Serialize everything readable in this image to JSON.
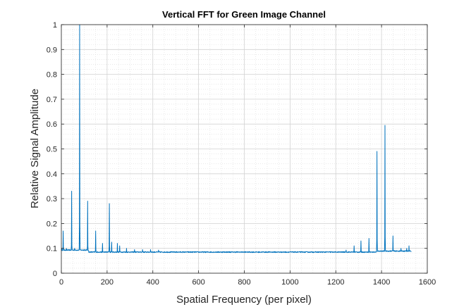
{
  "chart_data": {
    "type": "line",
    "title": "Vertical FFT for Green Image Channel",
    "xlabel": "Spatial Frequency (per pixel)",
    "ylabel": "Relative Signal Amplitude",
    "xlim": [
      0,
      1600
    ],
    "ylim": [
      0,
      1
    ],
    "xticks": [
      "0",
      "200",
      "400",
      "600",
      "800",
      "1000",
      "1200",
      "1400",
      "1600"
    ],
    "yticks": [
      "0",
      "0.1",
      "0.2",
      "0.3",
      "0.4",
      "0.5",
      "0.6",
      "0.7",
      "0.8",
      "0.9",
      "1"
    ],
    "grid": true,
    "minor_grid": true,
    "line_color": "#0072BD",
    "baseline": 0.085,
    "x_end": 1530,
    "peaks": [
      {
        "x": 2,
        "y": 0.1
      },
      {
        "x": 8,
        "y": 0.17
      },
      {
        "x": 14,
        "y": 0.095
      },
      {
        "x": 22,
        "y": 0.1
      },
      {
        "x": 45,
        "y": 0.33
      },
      {
        "x": 58,
        "y": 0.1
      },
      {
        "x": 80,
        "y": 1.0
      },
      {
        "x": 100,
        "y": 0.095
      },
      {
        "x": 115,
        "y": 0.29
      },
      {
        "x": 150,
        "y": 0.17
      },
      {
        "x": 180,
        "y": 0.12
      },
      {
        "x": 210,
        "y": 0.28
      },
      {
        "x": 220,
        "y": 0.125
      },
      {
        "x": 245,
        "y": 0.12
      },
      {
        "x": 255,
        "y": 0.11
      },
      {
        "x": 285,
        "y": 0.1
      },
      {
        "x": 320,
        "y": 0.095
      },
      {
        "x": 355,
        "y": 0.095
      },
      {
        "x": 390,
        "y": 0.095
      },
      {
        "x": 425,
        "y": 0.093
      },
      {
        "x": 1245,
        "y": 0.093
      },
      {
        "x": 1280,
        "y": 0.11
      },
      {
        "x": 1310,
        "y": 0.13
      },
      {
        "x": 1345,
        "y": 0.14
      },
      {
        "x": 1380,
        "y": 0.49
      },
      {
        "x": 1415,
        "y": 0.595
      },
      {
        "x": 1450,
        "y": 0.15
      },
      {
        "x": 1485,
        "y": 0.1
      },
      {
        "x": 1510,
        "y": 0.1
      },
      {
        "x": 1520,
        "y": 0.11
      }
    ]
  }
}
